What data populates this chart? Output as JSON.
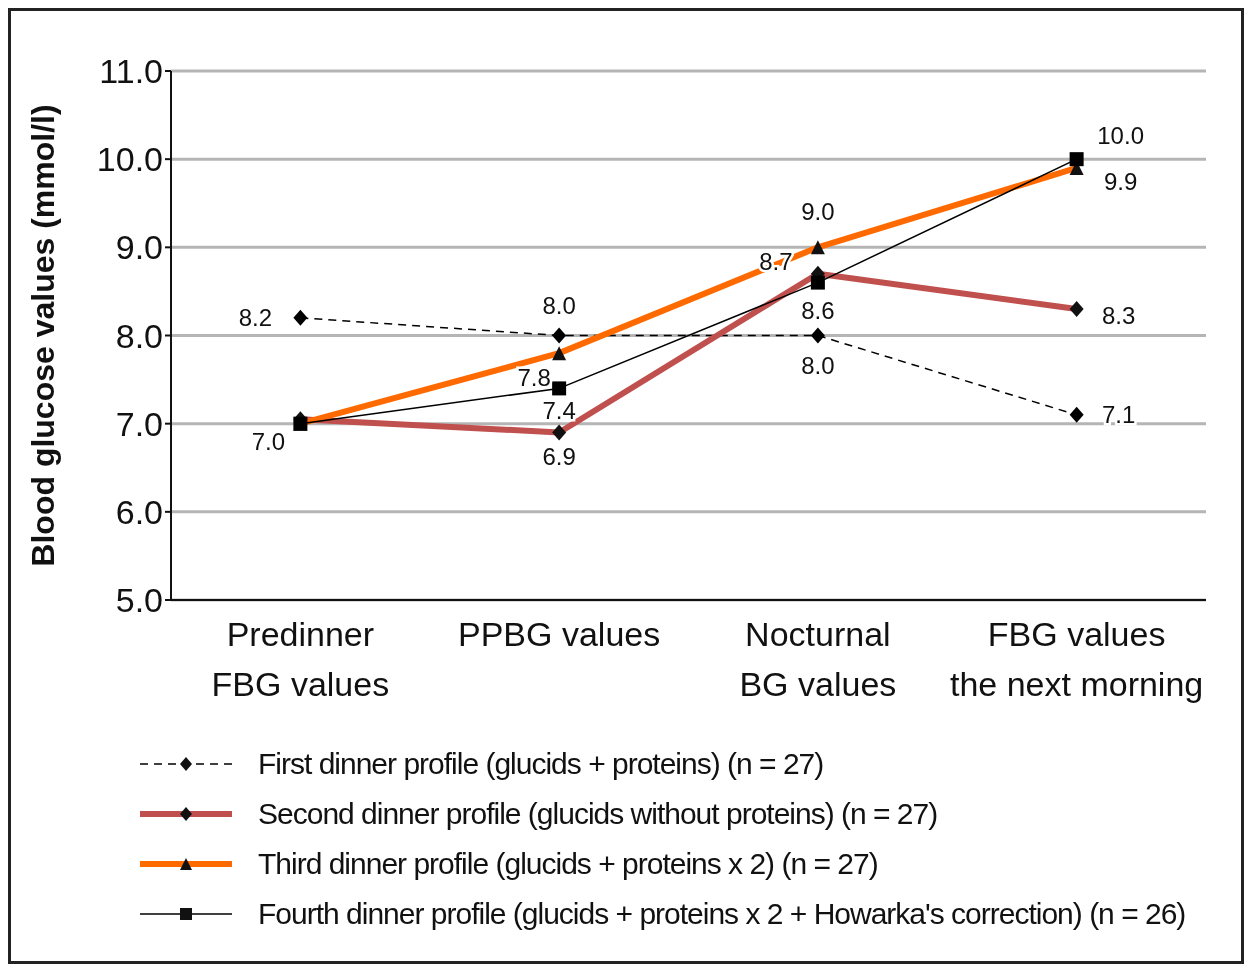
{
  "chart_data": {
    "type": "line",
    "ylabel": "Blood glucose values (mmol/l)",
    "categories": [
      "Predinner FBG values",
      "PPBG values",
      "Nocturnal BG values",
      "FBG values the next morning"
    ],
    "ylim": [
      5,
      11
    ],
    "yticks": [
      {
        "value": 5,
        "label": "5.0"
      },
      {
        "value": 6,
        "label": "6.0"
      },
      {
        "value": 7,
        "label": "7.0"
      },
      {
        "value": 8,
        "label": "8.0"
      },
      {
        "value": 9,
        "label": "9.0"
      },
      {
        "value": 10,
        "label": "10.0"
      },
      {
        "value": 11,
        "label": "11.0"
      }
    ],
    "grid": "y",
    "legend": "bottom",
    "series": [
      {
        "name": "First dinner profile (glucids + proteins) (n = 27)",
        "color": "#000000",
        "line_style": "dashed",
        "marker": "diamond",
        "values": [
          8.2,
          8.0,
          8.0,
          7.1
        ],
        "value_labels": [
          "8.2",
          "8.0",
          "8.0",
          "7.1"
        ]
      },
      {
        "name": "Second dinner profile (glucids without proteins) (n = 27)",
        "color": "#c0504d",
        "line_style": "solid",
        "marker": "diamond",
        "values": [
          7.05,
          6.9,
          8.7,
          8.3
        ],
        "value_labels": [
          null,
          "6.9",
          "8.7",
          "8.3"
        ]
      },
      {
        "name": "Third dinner profile (glucids + proteins x 2) (n = 27)",
        "color": "#ff6a00",
        "line_style": "solid",
        "marker": "triangle",
        "values": [
          7.0,
          7.8,
          9.0,
          9.9
        ],
        "value_labels": [
          null,
          "7.8",
          "9.0",
          "9.9"
        ]
      },
      {
        "name": "Fourth dinner profile (glucids + proteins x 2 + Howarka's correction) (n = 26)",
        "color": "#000000",
        "line_style": "solid",
        "marker": "square",
        "values": [
          7.0,
          7.4,
          8.6,
          10.0
        ],
        "value_labels": [
          "7.0",
          "7.4",
          "8.6",
          "10.0"
        ]
      }
    ]
  }
}
